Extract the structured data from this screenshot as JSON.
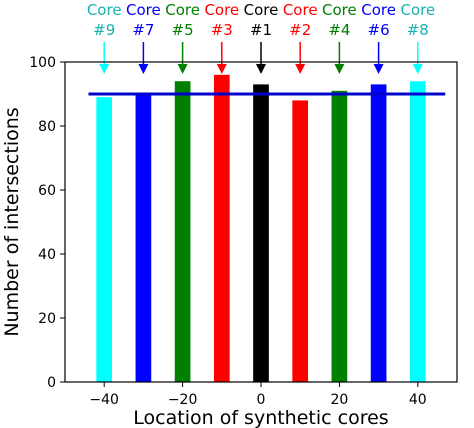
{
  "chart_data": {
    "type": "bar",
    "xlabel": "Location of synthetic cores",
    "ylabel": "Number of intersections",
    "xlim": [
      -50,
      50
    ],
    "ylim": [
      0,
      100
    ],
    "xticks": [
      -40,
      -20,
      0,
      20,
      40
    ],
    "yticks": [
      0,
      20,
      40,
      60,
      80,
      100
    ],
    "grid": false,
    "bar_width": 4,
    "bars": [
      {
        "x": -40,
        "value": 89,
        "color": "#00ffff",
        "core_word": "Core",
        "core_number": "#9"
      },
      {
        "x": -30,
        "value": 90,
        "color": "#0000ff",
        "core_word": "Core",
        "core_number": "#7"
      },
      {
        "x": -20,
        "value": 94,
        "color": "#008000",
        "core_word": "Core",
        "core_number": "#5"
      },
      {
        "x": -10,
        "value": 96,
        "color": "#ff0000",
        "core_word": "Core",
        "core_number": "#3"
      },
      {
        "x": 0,
        "value": 93,
        "color": "#000000",
        "core_word": "Core",
        "core_number": "#1"
      },
      {
        "x": 10,
        "value": 88,
        "color": "#ff0000",
        "core_word": "Core",
        "core_number": "#2"
      },
      {
        "x": 20,
        "value": 91,
        "color": "#008000",
        "core_word": "Core",
        "core_number": "#4"
      },
      {
        "x": 30,
        "value": 93,
        "color": "#0000ff",
        "core_word": "Core",
        "core_number": "#6"
      },
      {
        "x": 40,
        "value": 94,
        "color": "#00ffff",
        "core_word": "Core",
        "core_number": "#8"
      }
    ],
    "reference_line": {
      "y": 90,
      "x_range": [
        -50,
        50
      ],
      "color": "#0000cc"
    },
    "label_colors": {
      "#00ffff": "#17b2b2",
      "#0000ff": "#0000ff",
      "#008000": "#008000",
      "#ff0000": "#ff0000",
      "#000000": "#000000"
    }
  }
}
